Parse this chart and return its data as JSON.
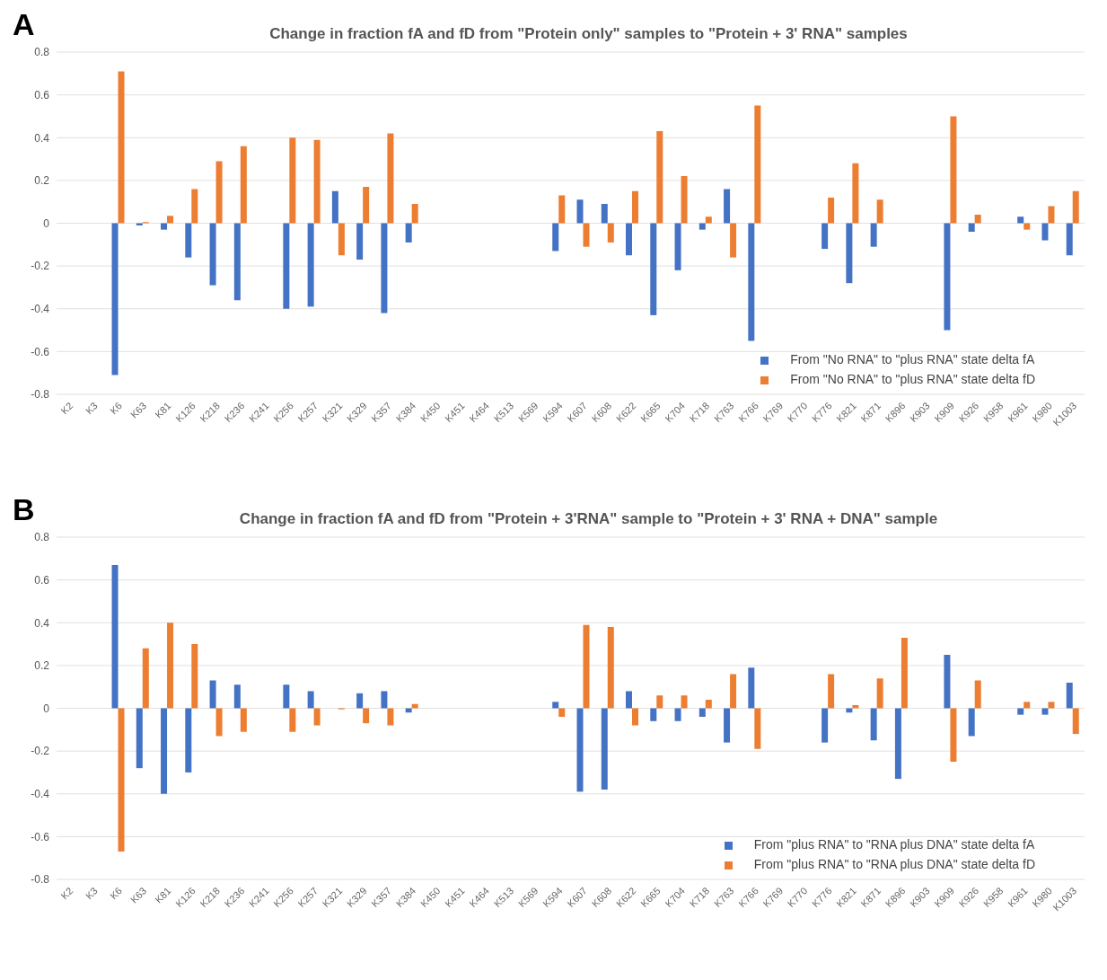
{
  "chart_data": [
    {
      "type": "bar",
      "title": "Change in fraction fA and fD from \"Protein only\" samples to \"Protein + 3' RNA\" samples",
      "annotations": [
        "A"
      ],
      "categories": [
        "K2",
        "K3",
        "K6",
        "K63",
        "K81",
        "K126",
        "K218",
        "K236",
        "K241",
        "K256",
        "K257",
        "K321",
        "K329",
        "K357",
        "K384",
        "K450",
        "K451",
        "K464",
        "K513",
        "K569",
        "K594",
        "K607",
        "K608",
        "K622",
        "K665",
        "K704",
        "K718",
        "K763",
        "K766",
        "K769",
        "K770",
        "K776",
        "K821",
        "K871",
        "K896",
        "K903",
        "K909",
        "K926",
        "K958",
        "K961",
        "K980",
        "K1003"
      ],
      "series": [
        {
          "name": "From \"No RNA\" to \"plus RNA\" state delta fA",
          "color": "#4472c4",
          "values": [
            null,
            null,
            -0.71,
            -0.01,
            -0.03,
            -0.16,
            -0.29,
            -0.36,
            null,
            -0.4,
            -0.39,
            0.15,
            -0.17,
            -0.42,
            -0.09,
            null,
            null,
            null,
            null,
            null,
            -0.13,
            0.11,
            0.09,
            -0.15,
            -0.43,
            -0.22,
            -0.03,
            0.16,
            -0.55,
            null,
            null,
            -0.12,
            -0.28,
            -0.11,
            null,
            null,
            -0.5,
            -0.04,
            null,
            0.03,
            -0.08,
            -0.15
          ]
        },
        {
          "name": "From \"No RNA\" to \"plus RNA\" state delta fD",
          "color": "#ed7d31",
          "values": [
            null,
            null,
            0.71,
            0.005,
            0.035,
            0.16,
            0.29,
            0.36,
            null,
            0.4,
            0.39,
            -0.15,
            0.17,
            0.42,
            0.09,
            null,
            null,
            null,
            null,
            null,
            0.13,
            -0.11,
            -0.09,
            0.15,
            0.43,
            0.22,
            0.03,
            -0.16,
            0.55,
            null,
            null,
            0.12,
            0.28,
            0.11,
            null,
            null,
            0.5,
            0.04,
            null,
            -0.03,
            0.08,
            0.15
          ]
        }
      ],
      "ylim": [
        -0.8,
        0.8
      ],
      "yticks": [
        -0.8,
        -0.6,
        -0.4,
        -0.2,
        0,
        0.2,
        0.4,
        0.6,
        0.8
      ],
      "grid": "y",
      "legend": "bottom right"
    },
    {
      "type": "bar",
      "title": "Change in fraction fA and fD from \"Protein + 3'RNA\" sample to \"Protein + 3' RNA + DNA\" sample",
      "annotations": [
        "B"
      ],
      "categories": [
        "K2",
        "K3",
        "K6",
        "K63",
        "K81",
        "K126",
        "K218",
        "K236",
        "K241",
        "K256",
        "K257",
        "K321",
        "K329",
        "K357",
        "K384",
        "K450",
        "K451",
        "K464",
        "K513",
        "K569",
        "K594",
        "K607",
        "K608",
        "K622",
        "K665",
        "K704",
        "K718",
        "K763",
        "K766",
        "K769",
        "K770",
        "K776",
        "K821",
        "K871",
        "K896",
        "K903",
        "K909",
        "K926",
        "K958",
        "K961",
        "K980",
        "K1003"
      ],
      "series": [
        {
          "name": "From \"plus RNA\" to \"RNA plus DNA\" state delta fA",
          "color": "#4472c4",
          "values": [
            null,
            null,
            0.67,
            -0.28,
            -0.4,
            -0.3,
            0.13,
            0.11,
            null,
            0.11,
            0.08,
            null,
            0.07,
            0.08,
            -0.02,
            null,
            null,
            null,
            null,
            null,
            0.03,
            -0.39,
            -0.38,
            0.08,
            -0.06,
            -0.06,
            -0.04,
            -0.16,
            0.19,
            null,
            null,
            -0.16,
            -0.02,
            -0.15,
            -0.33,
            null,
            0.25,
            -0.13,
            null,
            -0.03,
            -0.03,
            0.12
          ]
        },
        {
          "name": "From \"plus RNA\" to \"RNA plus DNA\" state delta fD",
          "color": "#ed7d31",
          "values": [
            null,
            null,
            -0.67,
            0.28,
            0.4,
            0.3,
            -0.13,
            -0.11,
            null,
            -0.11,
            -0.08,
            -0.005,
            -0.07,
            -0.08,
            0.02,
            null,
            null,
            null,
            null,
            null,
            -0.04,
            0.39,
            0.38,
            -0.08,
            0.06,
            0.06,
            0.04,
            0.16,
            -0.19,
            null,
            null,
            0.16,
            0.015,
            0.14,
            0.33,
            null,
            -0.25,
            0.13,
            null,
            0.03,
            0.03,
            -0.12
          ]
        }
      ],
      "ylim": [
        -0.8,
        0.8
      ],
      "yticks": [
        -0.8,
        -0.6,
        -0.4,
        -0.2,
        0,
        0.2,
        0.4,
        0.6,
        0.8
      ],
      "grid": "y",
      "legend": "bottom right"
    }
  ]
}
